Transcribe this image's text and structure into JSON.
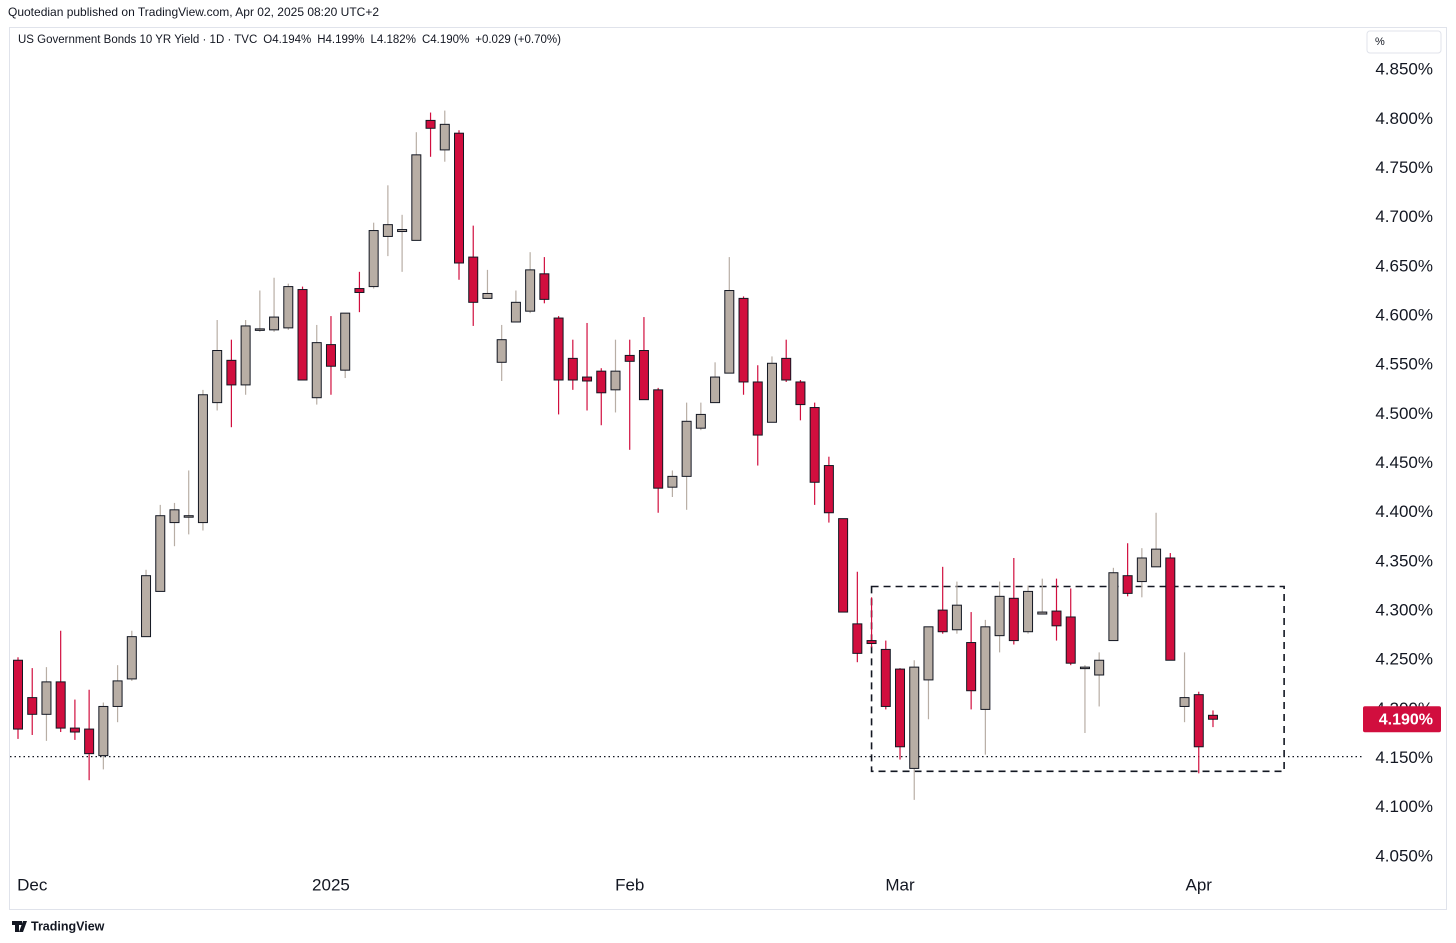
{
  "chart_data": {
    "type": "candlestick",
    "subtitle": "Quotedian published on TradingView.com, Apr 02, 2025 08:20 UTC+2",
    "title": "US Government Bonds 10 YR Yield · 1D · TVC",
    "legend_values": [
      "O4.194%",
      "H4.199%",
      "L4.182%",
      "C4.190%",
      "+0.029 (+0.70%)"
    ],
    "currency": "%",
    "footer": "TradingView",
    "last_label": "4.190%",
    "up_color": "#b8aea5",
    "down_color": "#d10e3e",
    "categories": [
      null,
      "Dec",
      null,
      null,
      null,
      null,
      null,
      null,
      null,
      null,
      null,
      null,
      null,
      null,
      null,
      null,
      null,
      null,
      null,
      null,
      null,
      null,
      "2025",
      null,
      null,
      null,
      null,
      null,
      null,
      null,
      null,
      null,
      null,
      null,
      null,
      null,
      null,
      null,
      null,
      null,
      null,
      null,
      null,
      "Feb",
      null,
      null,
      null,
      null,
      null,
      null,
      null,
      null,
      null,
      null,
      null,
      null,
      null,
      null,
      null,
      null,
      null,
      null,
      "Mar",
      null,
      null,
      null,
      null,
      null,
      null,
      null,
      null,
      null,
      null,
      null,
      null,
      null,
      null,
      null,
      null,
      null,
      null,
      null,
      null,
      "Apr",
      null
    ],
    "open": [
      4.25,
      4.212,
      4.195,
      4.228,
      4.181,
      4.18,
      4.153,
      4.203,
      4.231,
      4.274,
      4.32,
      4.39,
      4.396,
      4.39,
      4.512,
      4.555,
      4.53,
      4.586,
      4.586,
      4.588,
      4.627,
      4.517,
      4.571,
      4.545,
      4.628,
      4.63,
      4.681,
      4.686,
      4.677,
      4.799,
      4.769,
      4.786,
      4.66,
      4.618,
      4.553,
      4.594,
      4.605,
      4.643,
      4.598,
      4.557,
      4.538,
      4.544,
      4.525,
      4.56,
      4.565,
      4.525,
      4.426,
      4.437,
      4.486,
      4.512,
      4.542,
      4.618,
      4.533,
      4.492,
      4.557,
      4.533,
      4.507,
      4.448,
      4.394,
      4.287,
      4.27,
      4.261,
      4.241,
      4.14,
      4.23,
      4.301,
      4.281,
      4.268,
      4.2,
      4.275,
      4.313,
      4.279,
      4.297,
      4.3,
      4.294,
      4.242,
      4.235,
      4.27,
      4.336,
      4.33,
      4.345,
      4.354,
      4.203,
      4.215,
      4.194
    ],
    "high": [
      4.253,
      4.242,
      4.243,
      4.28,
      4.21,
      4.22,
      4.207,
      4.245,
      4.28,
      4.342,
      4.408,
      4.41,
      4.443,
      4.525,
      4.596,
      4.576,
      4.596,
      4.626,
      4.639,
      4.633,
      4.63,
      4.591,
      4.6,
      4.603,
      4.645,
      4.695,
      4.733,
      4.703,
      4.787,
      4.807,
      4.809,
      4.789,
      4.692,
      4.647,
      4.591,
      4.626,
      4.665,
      4.66,
      4.6,
      4.576,
      4.593,
      4.547,
      4.576,
      4.576,
      4.599,
      4.527,
      4.443,
      4.512,
      4.512,
      4.553,
      4.66,
      4.62,
      4.55,
      4.559,
      4.576,
      4.535,
      4.512,
      4.457,
      4.394,
      4.34,
      4.314,
      4.27,
      4.242,
      4.25,
      4.284,
      4.345,
      4.33,
      4.299,
      4.291,
      4.33,
      4.354,
      4.326,
      4.333,
      4.333,
      4.323,
      4.245,
      4.258,
      4.344,
      4.369,
      4.364,
      4.4,
      4.359,
      4.258,
      4.218,
      4.199
    ],
    "low": [
      4.17,
      4.174,
      4.168,
      4.177,
      4.169,
      4.128,
      4.139,
      4.187,
      4.229,
      4.274,
      4.32,
      4.366,
      4.378,
      4.382,
      4.504,
      4.487,
      4.52,
      4.584,
      4.584,
      4.586,
      4.535,
      4.51,
      4.52,
      4.537,
      4.604,
      4.628,
      4.661,
      4.645,
      4.677,
      4.762,
      4.757,
      4.637,
      4.59,
      4.618,
      4.534,
      4.594,
      4.603,
      4.613,
      4.5,
      4.525,
      4.504,
      4.489,
      4.502,
      4.464,
      4.515,
      4.4,
      4.416,
      4.403,
      4.484,
      4.512,
      4.542,
      4.52,
      4.448,
      4.492,
      4.533,
      4.494,
      4.408,
      4.39,
      4.299,
      4.248,
      4.263,
      4.2,
      4.149,
      4.108,
      4.19,
      4.277,
      4.277,
      4.2,
      4.154,
      4.258,
      4.266,
      4.277,
      4.297,
      4.27,
      4.245,
      4.176,
      4.203,
      4.27,
      4.315,
      4.314,
      4.345,
      4.25,
      4.187,
      4.135,
      4.182
    ],
    "close": [
      4.18,
      4.195,
      4.228,
      4.181,
      4.177,
      4.155,
      4.203,
      4.229,
      4.274,
      4.336,
      4.397,
      4.403,
      4.397,
      4.52,
      4.565,
      4.53,
      4.59,
      4.587,
      4.599,
      4.63,
      4.535,
      4.573,
      4.549,
      4.603,
      4.624,
      4.687,
      4.693,
      4.688,
      4.764,
      4.791,
      4.795,
      4.654,
      4.614,
      4.623,
      4.576,
      4.614,
      4.647,
      4.617,
      4.535,
      4.535,
      4.534,
      4.522,
      4.544,
      4.554,
      4.515,
      4.425,
      4.437,
      4.493,
      4.5,
      4.538,
      4.626,
      4.533,
      4.479,
      4.552,
      4.535,
      4.51,
      4.431,
      4.4,
      4.299,
      4.257,
      4.267,
      4.203,
      4.162,
      4.243,
      4.284,
      4.279,
      4.306,
      4.219,
      4.284,
      4.315,
      4.27,
      4.32,
      4.299,
      4.285,
      4.247,
      4.243,
      4.25,
      4.339,
      4.318,
      4.354,
      4.363,
      4.25,
      4.212,
      4.162,
      4.19
    ],
    "ylim": [
      3.996,
      4.894
    ],
    "yticks": [
      {
        "value": 4.05,
        "label": "4.050%"
      },
      {
        "value": 4.1,
        "label": "4.100%"
      },
      {
        "value": 4.15,
        "label": "4.150%"
      },
      {
        "value": 4.2,
        "label": "4.200%"
      },
      {
        "value": 4.25,
        "label": "4.250%"
      },
      {
        "value": 4.3,
        "label": "4.300%"
      },
      {
        "value": 4.35,
        "label": "4.350%"
      },
      {
        "value": 4.4,
        "label": "4.400%"
      },
      {
        "value": 4.45,
        "label": "4.450%"
      },
      {
        "value": 4.5,
        "label": "4.500%"
      },
      {
        "value": 4.55,
        "label": "4.550%"
      },
      {
        "value": 4.6,
        "label": "4.600%"
      },
      {
        "value": 4.65,
        "label": "4.650%"
      },
      {
        "value": 4.7,
        "label": "4.700%"
      },
      {
        "value": 4.75,
        "label": "4.750%"
      },
      {
        "value": 4.8,
        "label": "4.800%"
      },
      {
        "value": 4.85,
        "label": "4.850%"
      }
    ],
    "support_level": 4.152,
    "range_box": {
      "ylim": [
        4.137,
        4.325
      ],
      "from": 60,
      "to": 89
    }
  }
}
